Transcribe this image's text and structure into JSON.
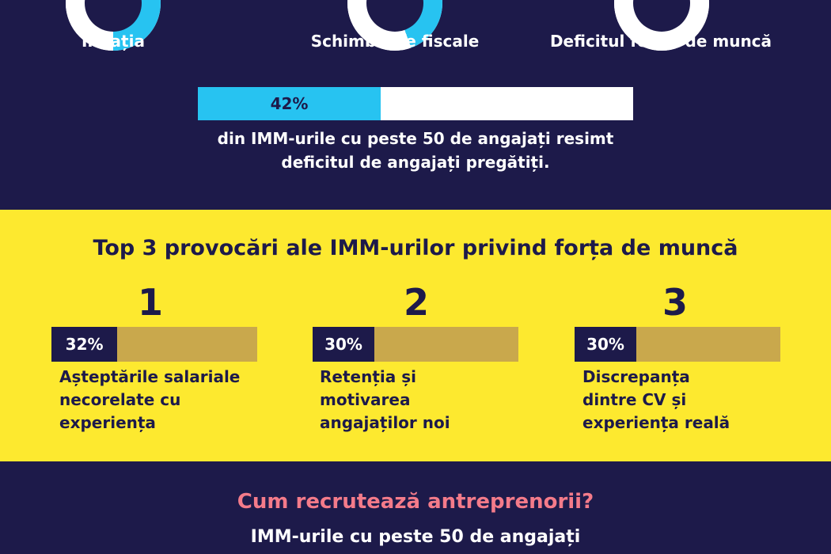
{
  "colors": {
    "navy": "#1d1a4a",
    "cyan": "#27c3f1",
    "yellow": "#fde92f",
    "muted_gold": "#c9a84c",
    "pink": "#f47b8a",
    "white": "#ffffff"
  },
  "top_donuts": [
    {
      "label": "Inflația"
    },
    {
      "label": "Schimbările fiscale"
    },
    {
      "label": "Deficitul forței de muncă"
    }
  ],
  "highlight": {
    "percent_label": "42%",
    "percent_value": 0.42,
    "caption_line1": "din IMM-urile cu peste 50 de angajați resimt",
    "caption_line2": "deficitul de angajați pregătiți."
  },
  "challenges": {
    "title": "Top 3 provocări ale IMM-urilor privind forța de muncă",
    "items": [
      {
        "rank": "1",
        "percent_label": "32%",
        "percent_value": 0.32,
        "line1": "Așteptările salariale",
        "line2": "necorelate cu",
        "line3": "experiența"
      },
      {
        "rank": "2",
        "percent_label": "30%",
        "percent_value": 0.3,
        "line1": "Retenția și",
        "line2": "motivarea",
        "line3": "angajaților noi"
      },
      {
        "rank": "3",
        "percent_label": "30%",
        "percent_value": 0.3,
        "line1": "Discrepanța",
        "line2": "dintre CV și",
        "line3": "experiența reală"
      }
    ]
  },
  "recruit": {
    "title": "Cum recrutează antreprenorii?",
    "subtitle": "IMM-urile cu peste 50 de angajați"
  }
}
